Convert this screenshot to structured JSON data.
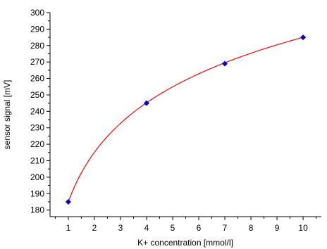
{
  "chart_data": {
    "type": "scatter",
    "xlabel": "K+ concentration [mmol/l]",
    "ylabel": "sensor signal [mV]",
    "xlim": [
      0.3,
      10.7
    ],
    "ylim": [
      176,
      300
    ],
    "x_ticks": [
      1,
      2,
      3,
      4,
      5,
      6,
      7,
      8,
      9,
      10
    ],
    "y_ticks": [
      180,
      190,
      200,
      210,
      220,
      230,
      240,
      250,
      260,
      270,
      280,
      290,
      300
    ],
    "grid": false,
    "legend": "none",
    "series": [
      {
        "kind": "points",
        "marker": "diamond",
        "color": "#0000cc",
        "x": [
          1,
          4,
          7,
          10
        ],
        "y": [
          185,
          245,
          269,
          285
        ]
      },
      {
        "kind": "fit-curve",
        "color": "#ff0000",
        "model": "logarithmic",
        "x_range": [
          1,
          10
        ],
        "y_at_x_min": 185,
        "y_at_x_max": 285
      }
    ]
  }
}
